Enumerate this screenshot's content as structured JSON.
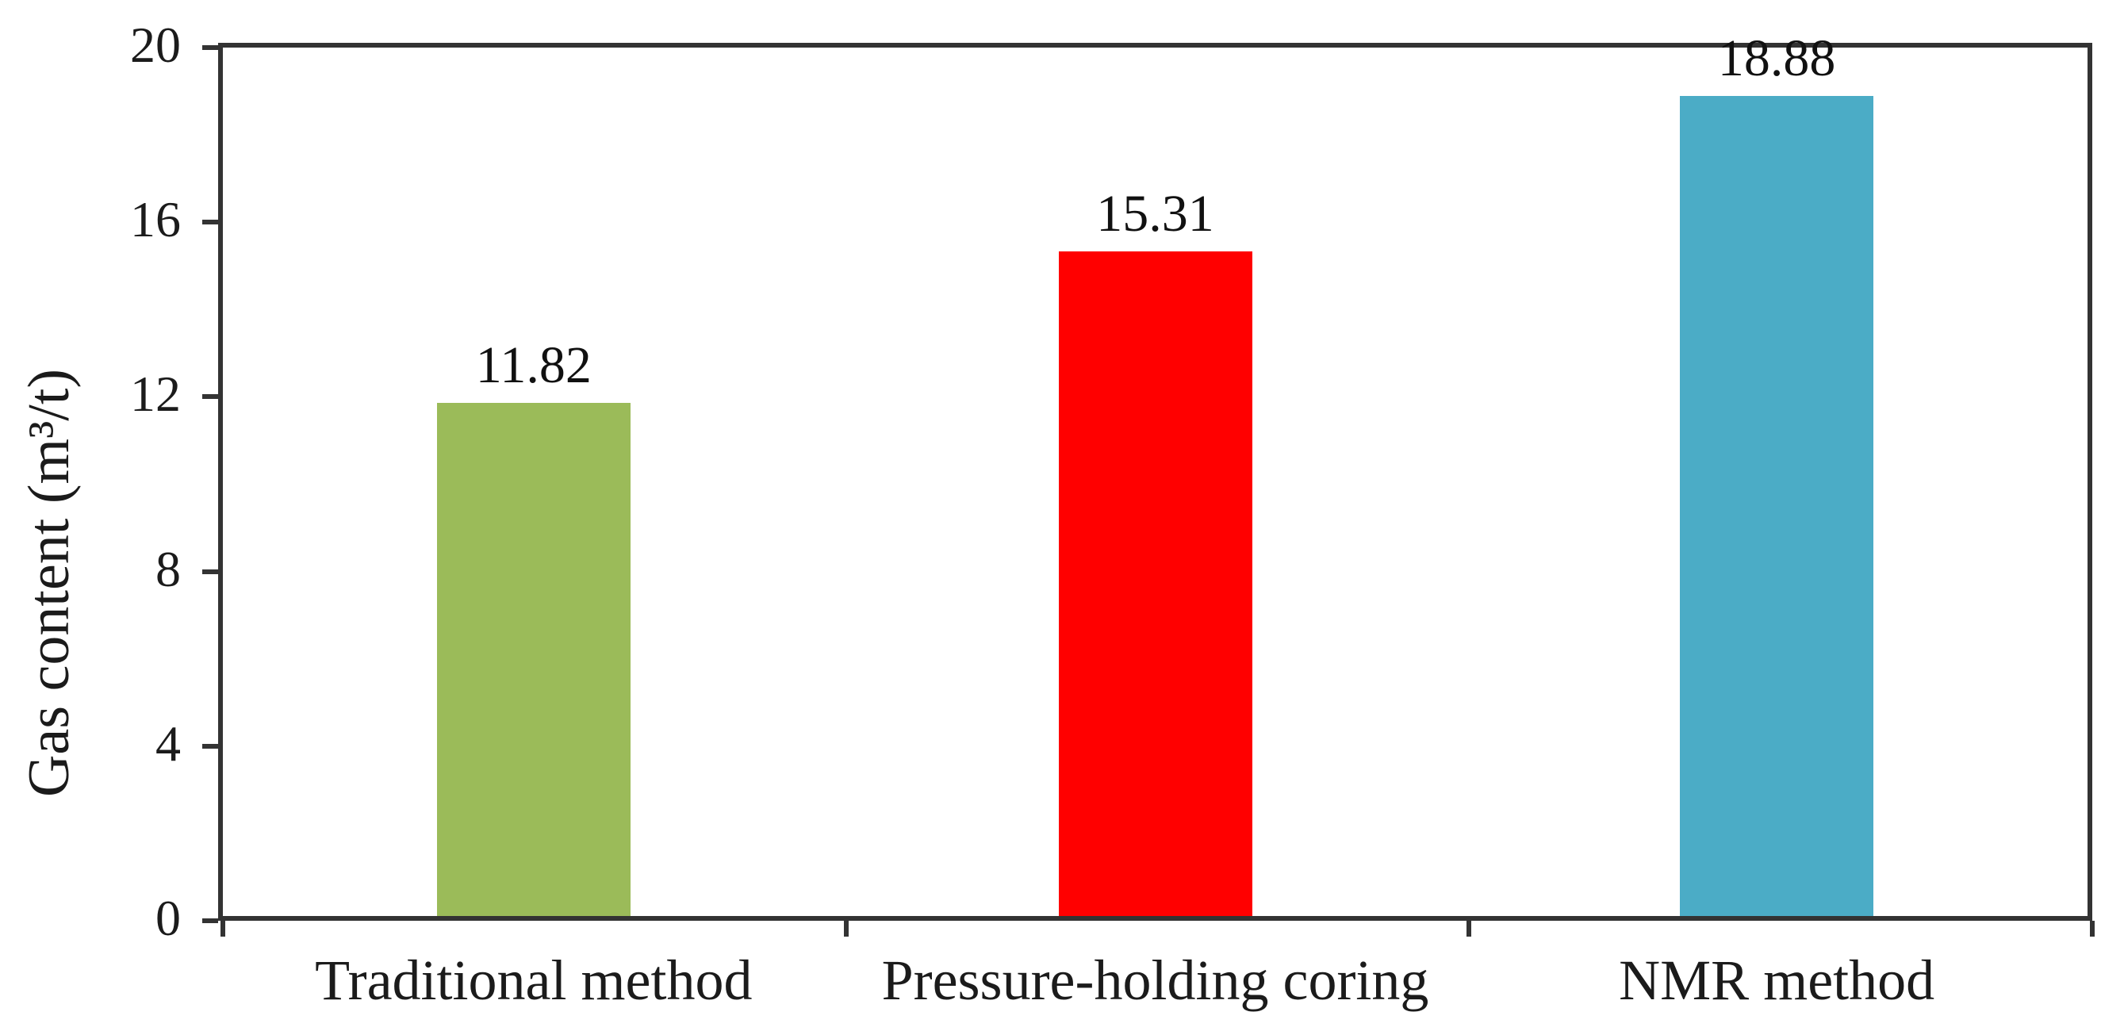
{
  "chart_data": {
    "type": "bar",
    "title": "",
    "categories": [
      "Traditional method",
      "Pressure-holding coring",
      "NMR method"
    ],
    "values": [
      11.82,
      15.31,
      18.88
    ],
    "value_labels": [
      "11.82",
      "15.31",
      "18.88"
    ],
    "bar_colors": [
      "#9BBB59",
      "#FF0000",
      "#4BACC6"
    ],
    "xlabel": "",
    "ylabel": "Gas content (m³/t)",
    "ylim": [
      0,
      20
    ],
    "yticks": [
      0,
      4,
      8,
      12,
      16,
      20
    ],
    "ytick_labels": [
      "0",
      "4",
      "8",
      "12",
      "16",
      "20"
    ],
    "grid": "off",
    "legend": "none",
    "plot_border": "all-sides",
    "axis_color": "#333333",
    "text_color": "#1b1b1b",
    "background_color": "#FFFFFF"
  }
}
